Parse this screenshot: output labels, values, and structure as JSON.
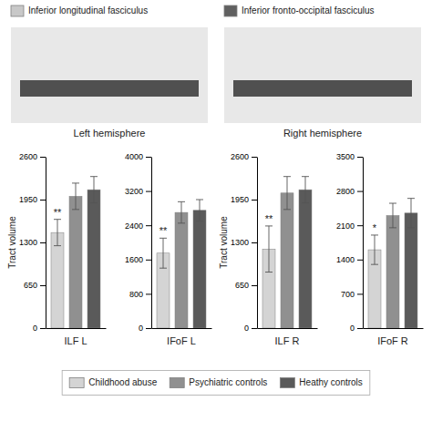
{
  "chart_data": [
    {
      "type": "bar",
      "x_label": "ILF L",
      "y_label": "Tract volume",
      "categories": [
        "Childhood abuse",
        "Psychiatric controls",
        "Heathy controls"
      ],
      "colors": [
        "#d4d4d4",
        "#909090",
        "#5a5a5a"
      ],
      "values": [
        1450,
        2000,
        2100
      ],
      "errors": [
        200,
        200,
        200
      ],
      "ylim": [
        0,
        2600
      ],
      "yticks": [
        0,
        650,
        1300,
        1950,
        2600
      ],
      "annotations": [
        "**"
      ],
      "tick_labels": "y",
      "legend": "bottom"
    },
    {
      "type": "bar",
      "x_label": "IFoF L",
      "categories": [
        "Childhood abuse",
        "Psychiatric controls",
        "Heathy controls"
      ],
      "colors": [
        "#d4d4d4",
        "#909090",
        "#5a5a5a"
      ],
      "values": [
        1750,
        2700,
        2750
      ],
      "errors": [
        350,
        250,
        250
      ],
      "ylim": [
        0,
        4000
      ],
      "yticks": [
        0,
        800,
        1600,
        2400,
        3200,
        4000
      ],
      "annotations": [
        "**"
      ],
      "tick_labels": "y"
    },
    {
      "type": "bar",
      "x_label": "ILF R",
      "y_label": "Tract volume",
      "categories": [
        "Childhood abuse",
        "Psychiatric controls",
        "Heathy controls"
      ],
      "colors": [
        "#d4d4d4",
        "#909090",
        "#5a5a5a"
      ],
      "values": [
        1200,
        2050,
        2100
      ],
      "errors": [
        350,
        250,
        200
      ],
      "ylim": [
        0,
        2600
      ],
      "yticks": [
        0,
        650,
        1300,
        1950,
        2600
      ],
      "annotations": [
        "**"
      ],
      "tick_labels": "y"
    },
    {
      "type": "bar",
      "x_label": "IFoF R",
      "categories": [
        "Childhood abuse",
        "Psychiatric controls",
        "Heathy controls"
      ],
      "colors": [
        "#d4d4d4",
        "#909090",
        "#5a5a5a"
      ],
      "values": [
        1600,
        2300,
        2350
      ],
      "errors": [
        300,
        250,
        300
      ],
      "ylim": [
        0,
        3500
      ],
      "yticks": [
        0,
        700,
        1400,
        2100,
        2800,
        3500
      ],
      "annotations": [
        "*"
      ],
      "tick_labels": "y"
    }
  ],
  "annotations": [
    {
      "text": "Inferior longitudinal fasciculus",
      "color": "#c8c8c8"
    },
    {
      "text": "Inferior fronto-occipital fasciculus",
      "color": "#606060"
    },
    {
      "text": "Left hemisphere"
    },
    {
      "text": "Right hemisphere"
    }
  ]
}
